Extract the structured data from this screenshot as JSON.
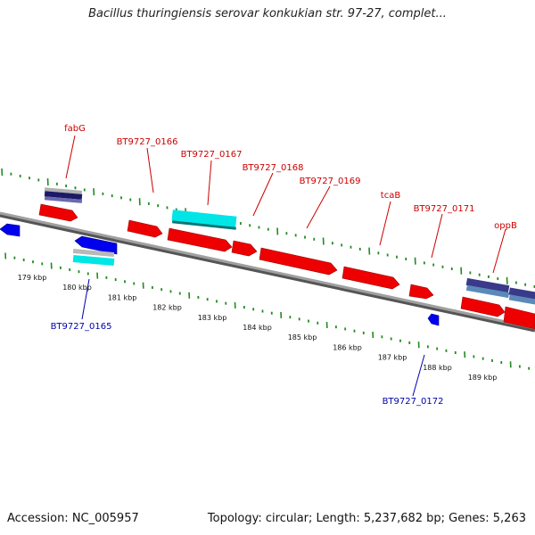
{
  "title": "Bacillus thuringiensis serovar konkukian str. 97-27, complet...",
  "footer": {
    "accession": "Accession: NC_005957",
    "summary": "Topology: circular; Length: 5,237,682 bp; Genes: 5,263"
  },
  "colors": {
    "forward_cds": "#ff0000",
    "reverse_cds": "#0000ff",
    "rrna_teal": "#00e5e5",
    "trna_navy": "#1a1a66",
    "gray_feature": "#b0b0b0",
    "backbone": "#808080",
    "tick_green": "#228b22",
    "forward_label": "#cc0000",
    "reverse_label": "#0000aa"
  },
  "scale_ticks": [
    "179 kbp",
    "180 kbp",
    "181 kbp",
    "182 kbp",
    "183 kbp",
    "184 kbp",
    "185 kbp",
    "186 kbp",
    "187 kbp",
    "188 kbp",
    "189 kbp"
  ],
  "forward_labels": [
    "fabG",
    "BT9727_0166",
    "BT9727_0167",
    "BT9727_0168",
    "BT9727_0169",
    "tcaB",
    "BT9727_0171",
    "oppB"
  ],
  "reverse_labels": [
    "BT9727_0165",
    "BT9727_0172"
  ]
}
